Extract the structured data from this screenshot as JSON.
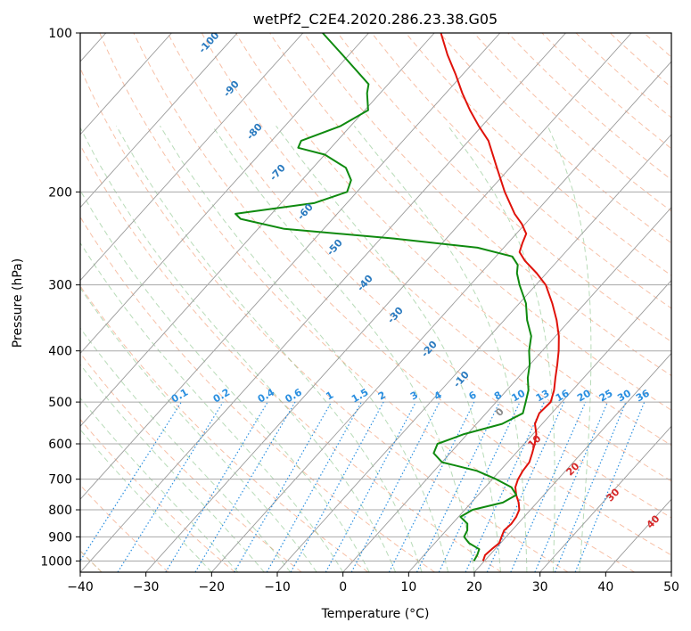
{
  "chart_data": {
    "type": "skew-t",
    "title": "wetPf2_C2E4.2020.286.23.38.G05",
    "xlabel": "Temperature (°C)",
    "ylabel": "Pressure (hPa)",
    "xlim": [
      -40,
      50
    ],
    "ylim": [
      1050,
      100
    ],
    "y_scale": "log",
    "grid": true,
    "x_ticks": [
      "−40",
      "−30",
      "−20",
      "−10",
      "0",
      "10",
      "20",
      "30",
      "40",
      "50"
    ],
    "x_tick_values": [
      -40,
      -30,
      -20,
      -10,
      0,
      10,
      20,
      30,
      40,
      50
    ],
    "y_ticks": [
      "100",
      "200",
      "300",
      "400",
      "500",
      "600",
      "700",
      "800",
      "900",
      "1000"
    ],
    "y_tick_values": [
      100,
      200,
      300,
      400,
      500,
      600,
      700,
      800,
      900,
      1000
    ],
    "series": [
      {
        "color": "#e0120a",
        "profile": "temperature",
        "points": [
          [
            1000,
            19.8
          ],
          [
            975,
            19.3
          ],
          [
            950,
            19.5
          ],
          [
            925,
            19.8
          ],
          [
            900,
            19.3
          ],
          [
            875,
            18.8
          ],
          [
            850,
            19.0
          ],
          [
            825,
            18.8
          ],
          [
            800,
            18.3
          ],
          [
            775,
            17.2
          ],
          [
            750,
            15.8
          ],
          [
            725,
            14.6
          ],
          [
            700,
            13.9
          ],
          [
            675,
            13.5
          ],
          [
            650,
            13.3
          ],
          [
            625,
            12.5
          ],
          [
            600,
            11.6
          ],
          [
            575,
            10.5
          ],
          [
            550,
            8.9
          ],
          [
            525,
            8.1
          ],
          [
            500,
            8.3
          ],
          [
            475,
            7.2
          ],
          [
            450,
            5.7
          ],
          [
            425,
            4.2
          ],
          [
            400,
            2.5
          ],
          [
            375,
            0.5
          ],
          [
            350,
            -2.0
          ],
          [
            325,
            -5.0
          ],
          [
            300,
            -8.5
          ],
          [
            285,
            -11.5
          ],
          [
            270,
            -15.0
          ],
          [
            260,
            -17.0
          ],
          [
            250,
            -17.8
          ],
          [
            240,
            -18.5
          ],
          [
            230,
            -20.5
          ],
          [
            220,
            -23.0
          ],
          [
            200,
            -27.5
          ],
          [
            180,
            -32.0
          ],
          [
            160,
            -37.0
          ],
          [
            150,
            -40.5
          ],
          [
            140,
            -44.0
          ],
          [
            130,
            -47.5
          ],
          [
            120,
            -51.0
          ],
          [
            110,
            -55.0
          ],
          [
            100,
            -59.0
          ]
        ]
      },
      {
        "color": "#0f8a0f",
        "profile": "dewpoint",
        "points": [
          [
            1000,
            18.4
          ],
          [
            975,
            18.1
          ],
          [
            950,
            17.6
          ],
          [
            925,
            15.2
          ],
          [
            900,
            13.6
          ],
          [
            875,
            13.2
          ],
          [
            850,
            12.3
          ],
          [
            825,
            10.3
          ],
          [
            800,
            11.2
          ],
          [
            775,
            14.8
          ],
          [
            750,
            15.8
          ],
          [
            725,
            14.0
          ],
          [
            700,
            10.6
          ],
          [
            675,
            6.5
          ],
          [
            650,
            0.0
          ],
          [
            625,
            -2.5
          ],
          [
            600,
            -3.2
          ],
          [
            575,
            -0.5
          ],
          [
            550,
            3.9
          ],
          [
            525,
            5.6
          ],
          [
            500,
            4.5
          ],
          [
            475,
            3.3
          ],
          [
            450,
            1.5
          ],
          [
            425,
            0.0
          ],
          [
            400,
            -2.0
          ],
          [
            375,
            -3.7
          ],
          [
            350,
            -6.5
          ],
          [
            325,
            -9.0
          ],
          [
            300,
            -12.5
          ],
          [
            285,
            -14.5
          ],
          [
            275,
            -15.5
          ],
          [
            265,
            -17.5
          ],
          [
            255,
            -24.0
          ],
          [
            245,
            -38.0
          ],
          [
            235,
            -56.0
          ],
          [
            225,
            -64.0
          ],
          [
            220,
            -65.5
          ],
          [
            210,
            -55.0
          ],
          [
            200,
            -51.5
          ],
          [
            190,
            -52.5
          ],
          [
            180,
            -55.0
          ],
          [
            170,
            -60.0
          ],
          [
            165,
            -65.0
          ],
          [
            160,
            -65.5
          ],
          [
            150,
            -61.5
          ],
          [
            140,
            -59.5
          ],
          [
            130,
            -62.0
          ],
          [
            125,
            -63.0
          ],
          [
            110,
            -71.0
          ],
          [
            100,
            -77.0
          ]
        ]
      }
    ],
    "mixing_ratio_labels": [
      "0.1",
      "0.2",
      "0.4",
      "0.6",
      "1",
      "1.5",
      "2",
      "3",
      "4",
      "6",
      "8",
      "10",
      "13",
      "16",
      "20",
      "25",
      "30",
      "36"
    ],
    "dry_adiabat_labels": [
      "-100",
      "-90",
      "-80",
      "-70",
      "-60",
      "-50",
      "-40",
      "-30",
      "-20",
      "-10"
    ],
    "moist_adiabat_labels": [
      "0",
      "10",
      "20",
      "30",
      "40"
    ]
  }
}
